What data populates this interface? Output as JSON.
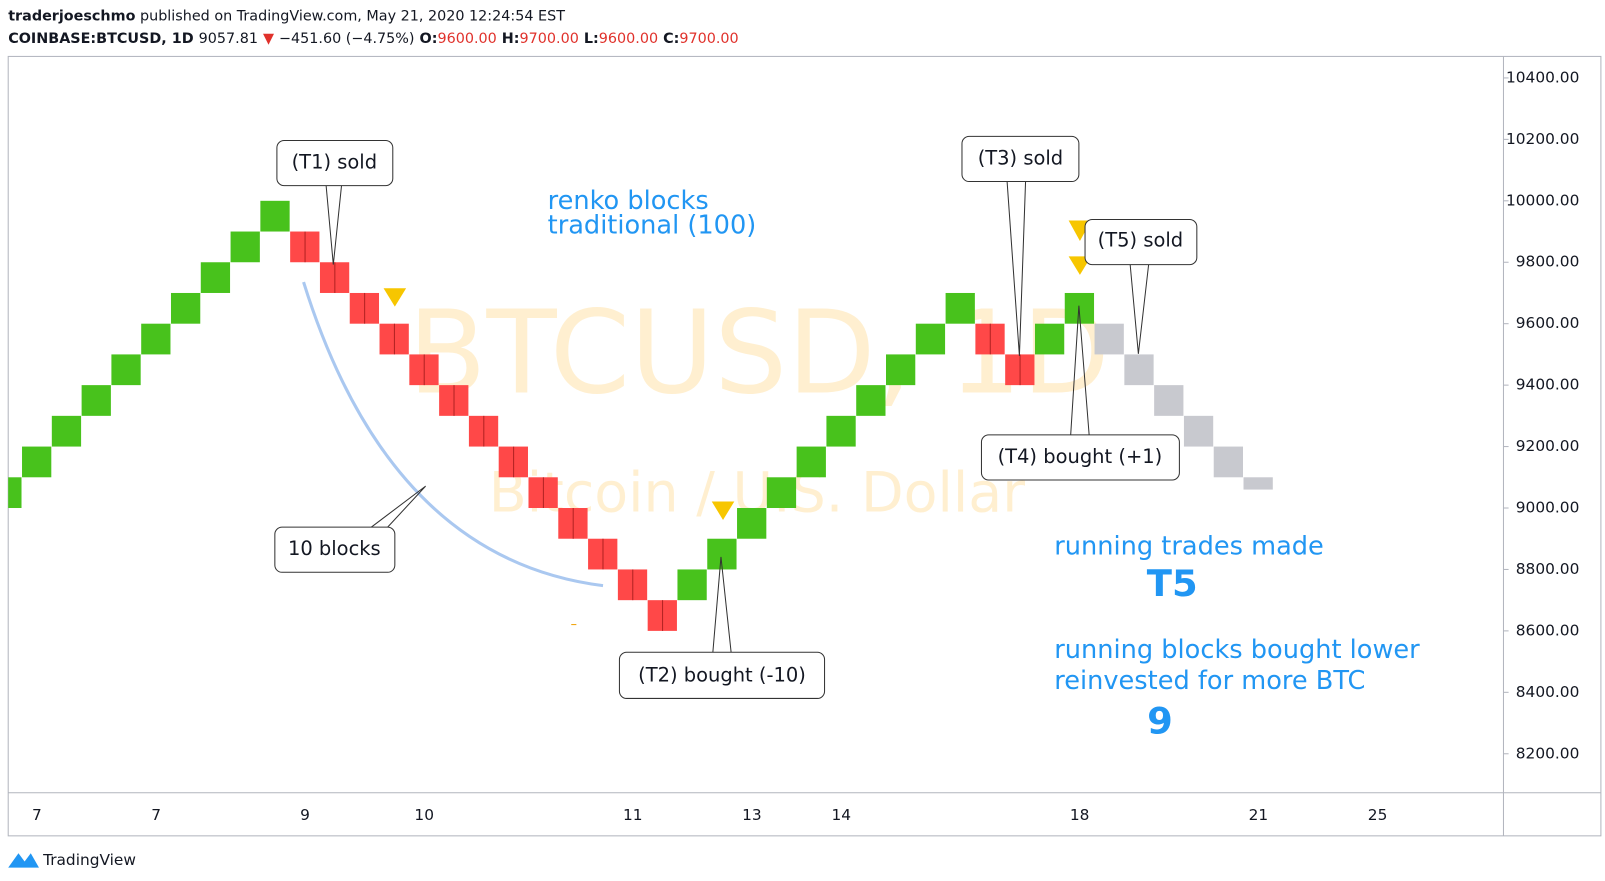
{
  "header": {
    "author": "traderjoeschmo",
    "published": "published on TradingView.com, May 21, 2020 12:24:54 EST",
    "symbol": "COINBASE:BTCUSD, 1D",
    "last": "9057.81",
    "arrow": "▼",
    "change": "−451.60 (−4.75%)",
    "open_label": "O:",
    "open": "9600.00",
    "high_label": "H:",
    "high": "9700.00",
    "low_label": "L:",
    "low": "9600.00",
    "close_label": "C:",
    "close": "9700.00"
  },
  "footer": {
    "brand": "TradingView"
  },
  "chart_data": {
    "type": "renko",
    "watermark": "BTCUSD, 1D",
    "watermark_sub": "Bitcoin / U.S. Dollar",
    "categories": [
      null,
      "7",
      null,
      null,
      null,
      "7",
      null,
      null,
      null,
      null,
      "9",
      null,
      null,
      null,
      "10",
      null,
      null,
      null,
      null,
      null,
      null,
      "11",
      null,
      null,
      null,
      "13",
      null,
      null,
      "14",
      null,
      null,
      null,
      null,
      null,
      null,
      null,
      "18",
      null,
      null,
      null,
      null,
      null,
      "21",
      null,
      null,
      null,
      "25"
    ],
    "open": [
      9000,
      9100,
      9200,
      9300,
      9400,
      9500,
      9600,
      9700,
      9800,
      9900,
      9900,
      9800,
      9700,
      9600,
      9500,
      9400,
      9300,
      9200,
      9100,
      9000,
      8900,
      8800,
      8700,
      8700,
      8800,
      8900,
      9000,
      9100,
      9200,
      9300,
      9400,
      9500,
      9600,
      9600,
      9500,
      9500,
      9600,
      9600,
      9500,
      9400,
      9300,
      9200,
      9100,
      null,
      null,
      null,
      null
    ],
    "close": [
      9100,
      9200,
      9300,
      9400,
      9500,
      9600,
      9700,
      9800,
      9900,
      10000,
      9800,
      9700,
      9600,
      9500,
      9400,
      9300,
      9200,
      9100,
      9000,
      8900,
      8800,
      8700,
      8600,
      8800,
      8900,
      9000,
      9100,
      9200,
      9300,
      9400,
      9500,
      9600,
      9700,
      9500,
      9400,
      9600,
      9700,
      9500,
      9400,
      9300,
      9200,
      9100,
      9060,
      null,
      null,
      null,
      null
    ],
    "colors": [
      "#48c21c",
      "#48c21c",
      "#48c21c",
      "#48c21c",
      "#48c21c",
      "#48c21c",
      "#48c21c",
      "#48c21c",
      "#48c21c",
      "#48c21c",
      "#ff4848",
      "#ff4848",
      "#ff4848",
      "#ff4848",
      "#ff4848",
      "#ff4848",
      "#ff4848",
      "#ff4848",
      "#ff4848",
      "#ff4848",
      "#ff4848",
      "#ff4848",
      "#ff4848",
      "#48c21c",
      "#48c21c",
      "#48c21c",
      "#48c21c",
      "#48c21c",
      "#48c21c",
      "#48c21c",
      "#48c21c",
      "#48c21c",
      "#48c21c",
      "#ff4848",
      "#ff4848",
      "#48c21c",
      "#48c21c",
      "#c8c9cf",
      "#c8c9cf",
      "#c8c9cf",
      "#c8c9cf",
      "#c8c9cf",
      "#c8c9cf",
      null,
      null,
      null,
      null
    ],
    "ylim": [
      8073,
      10470
    ],
    "yticks": [
      {
        "value": 8200,
        "label": "8200.00"
      },
      {
        "value": 8400,
        "label": "8400.00"
      },
      {
        "value": 8600,
        "label": "8600.00"
      },
      {
        "value": 8800,
        "label": "8800.00"
      },
      {
        "value": 9000,
        "label": "9000.00"
      },
      {
        "value": 9200,
        "label": "9200.00"
      },
      {
        "value": 9400,
        "label": "9400.00"
      },
      {
        "value": 9600,
        "label": "9600.00"
      },
      {
        "value": 9800,
        "label": "9800.00"
      },
      {
        "value": 10000,
        "label": "10000.00"
      },
      {
        "value": 10200,
        "label": "10200.00"
      },
      {
        "value": 10400,
        "label": "10400.00"
      }
    ],
    "annotations": {
      "renko_1": "renko blocks",
      "renko_2": "traditional (100)",
      "t1": "(T1) sold",
      "blocks": "10 blocks",
      "t2": "(T2) bought (-10)",
      "t3": "(T3) sold",
      "t4": "(T4) bought (+1)",
      "t5": "(T5) sold",
      "trades_label": "running trades made",
      "trades_value": "T5",
      "blocks_label_1": "running blocks bought lower",
      "blocks_label_2": "reinvested for more BTC",
      "blocks_value": "9"
    }
  }
}
